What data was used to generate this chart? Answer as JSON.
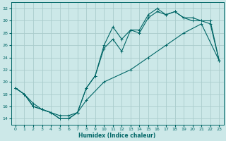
{
  "xlabel": "Humidex (Indice chaleur)",
  "bg_color": "#cce8e8",
  "grid_color": "#aacccc",
  "line_color": "#006666",
  "xlim": [
    -0.5,
    23.5
  ],
  "ylim": [
    13,
    33
  ],
  "yticks": [
    14,
    16,
    18,
    20,
    22,
    24,
    26,
    28,
    30,
    32
  ],
  "xticks": [
    0,
    1,
    2,
    3,
    4,
    5,
    6,
    7,
    8,
    9,
    10,
    11,
    12,
    13,
    14,
    15,
    16,
    17,
    18,
    19,
    20,
    21,
    22,
    23
  ],
  "line1_x": [
    0,
    1,
    2,
    3,
    4,
    5,
    6,
    7,
    8,
    9,
    10,
    11,
    12,
    13,
    14,
    15,
    16,
    17,
    18,
    19,
    20,
    21,
    22,
    23
  ],
  "line1_y": [
    19,
    18,
    16,
    15.5,
    15,
    14,
    14,
    15,
    19,
    21,
    26,
    29,
    27,
    28.5,
    28.5,
    31,
    32,
    31,
    31.5,
    30.5,
    30,
    30,
    30,
    23.5
  ],
  "line2_x": [
    0,
    1,
    2,
    3,
    4,
    5,
    6,
    7,
    8,
    9,
    10,
    11,
    12,
    13,
    14,
    15,
    16,
    17,
    18,
    19,
    20,
    21,
    22,
    23
  ],
  "line2_y": [
    19,
    18,
    16,
    15.5,
    15,
    14,
    14,
    15,
    19,
    21,
    25.5,
    27,
    25,
    28.5,
    28,
    30.5,
    31.5,
    31,
    31.5,
    30.5,
    30.5,
    30,
    29.5,
    23.5
  ],
  "line3_x": [
    0,
    1,
    2,
    3,
    5,
    6,
    7,
    8,
    10,
    13,
    15,
    17,
    19,
    21,
    23
  ],
  "line3_y": [
    19,
    18,
    16.5,
    15.5,
    14.5,
    14.5,
    15,
    17,
    20,
    22,
    24,
    26,
    28,
    29.5,
    23.5
  ]
}
